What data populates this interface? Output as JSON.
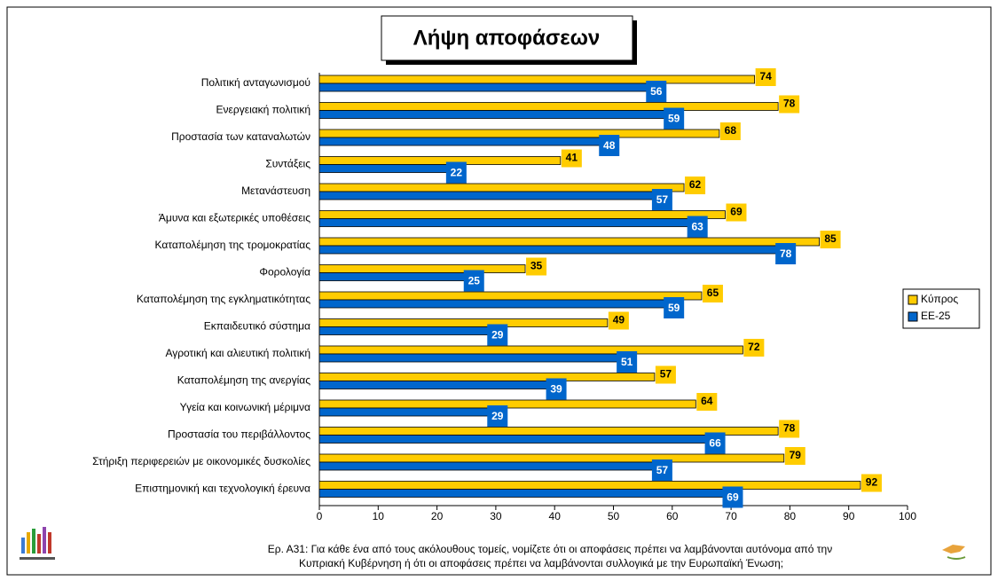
{
  "chart_data": {
    "type": "bar",
    "orientation": "horizontal",
    "title": "Λήψη αποφάσεων",
    "categories": [
      "Πολιτική ανταγωνισμού",
      "Ενεργειακή πολιτική",
      "Προστασία των καταναλωτών",
      "Συντάξεις",
      "Μετανάστευση",
      "Άμυνα και εξωτερικές υποθέσεις",
      "Καταπολέμηση της τρομοκρατίας",
      "Φορολογία",
      "Καταπολέμηση της εγκληματικότητας",
      "Εκπαιδευτικό σύστημα",
      "Αγροτική και αλιευτική πολιτική ",
      "Καταπολέμηση της ανεργίας",
      "Υγεία και κοινωνική μέριμνα",
      "Προστασία του περιβάλλοντος",
      "Στήριξη  περιφερειών με οικονομικές δυσκολίες",
      "Επιστημονική και τεχνολογική έρευνα"
    ],
    "series": [
      {
        "name": "Κύπρος",
        "color": "#FFCC00",
        "values": [
          74,
          78,
          68,
          41,
          62,
          69,
          85,
          35,
          65,
          49,
          72,
          57,
          64,
          78,
          79,
          92
        ]
      },
      {
        "name": "ΕΕ-25",
        "color": "#0066CC",
        "values": [
          56,
          59,
          48,
          22,
          57,
          63,
          78,
          25,
          59,
          29,
          51,
          39,
          29,
          66,
          57,
          69
        ]
      }
    ],
    "xlim": [
      0,
      100
    ],
    "xticks": [
      0,
      10,
      20,
      30,
      40,
      50,
      60,
      70,
      80,
      90,
      100
    ],
    "legend": "right",
    "note": [
      "Ερ. Α31: Για κάθε ένα από τους ακόλουθους τομείς, νομίζετε ότι οι αποφάσεις πρέπει να λαμβάνονται αυτόνομα από την",
      "Κυπριακή Κυβέρνηση ή ότι οι αποφάσεις πρέπει να λαμβάνονται συλλογικά με την Ευρωπαϊκή Ένωση;"
    ]
  }
}
